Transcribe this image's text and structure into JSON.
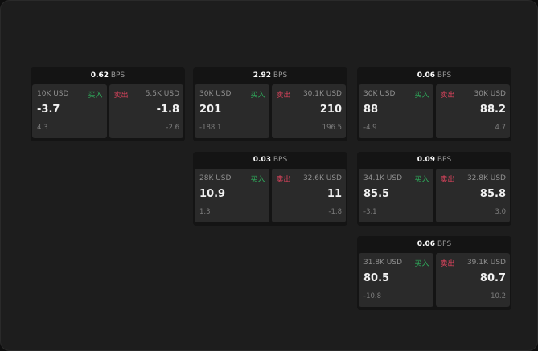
{
  "buy_label": "买入",
  "sell_label": "卖出",
  "unit": "BPS",
  "colors": {
    "buy": "#2fae5c",
    "sell": "#e0445e"
  },
  "panels": [
    {
      "spread": "0.62",
      "buy": {
        "amount": "10K USD",
        "price": "-3.7",
        "change": "4.3"
      },
      "sell": {
        "amount": "5.5K USD",
        "price": "-1.8",
        "change": "-2.6"
      }
    },
    {
      "spread": "2.92",
      "buy": {
        "amount": "30K USD",
        "price": "201",
        "change": "-188.1"
      },
      "sell": {
        "amount": "30.1K USD",
        "price": "210",
        "change": "196.5"
      }
    },
    {
      "spread": "0.06",
      "buy": {
        "amount": "30K USD",
        "price": "88",
        "change": "-4.9"
      },
      "sell": {
        "amount": "30K USD",
        "price": "88.2",
        "change": "4.7"
      }
    },
    {
      "spread": "0.03",
      "buy": {
        "amount": "28K USD",
        "price": "10.9",
        "change": "1.3"
      },
      "sell": {
        "amount": "32.6K USD",
        "price": "11",
        "change": "-1.8"
      }
    },
    {
      "spread": "0.09",
      "buy": {
        "amount": "34.1K USD",
        "price": "85.5",
        "change": "-3.1"
      },
      "sell": {
        "amount": "32.8K USD",
        "price": "85.8",
        "change": "3.0"
      }
    },
    {
      "spread": "0.06",
      "buy": {
        "amount": "31.8K USD",
        "price": "80.5",
        "change": "-10.8"
      },
      "sell": {
        "amount": "39.1K USD",
        "price": "80.7",
        "change": "10.2"
      }
    }
  ]
}
